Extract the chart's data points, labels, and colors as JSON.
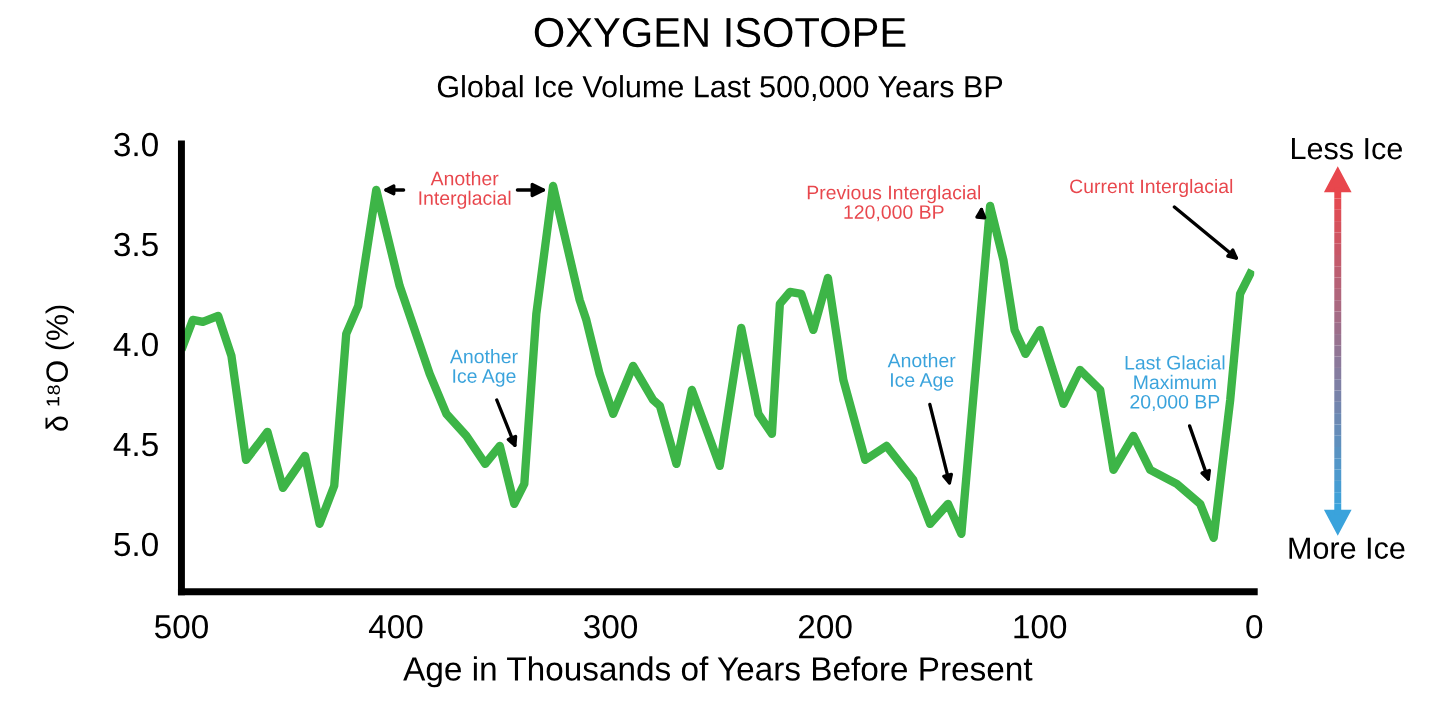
{
  "chart_data": {
    "type": "line",
    "title": "OXYGEN ISOTOPE",
    "subtitle": "Global Ice Volume Last 500,000 Years BP",
    "xlabel": "Age in Thousands of Years Before Present",
    "ylabel": "δ ¹⁸O (%)",
    "xlim": [
      500,
      0
    ],
    "xticks": [
      500,
      400,
      300,
      200,
      100,
      0
    ],
    "ylim": [
      5.24,
      3.0
    ],
    "yticks": [
      {
        "value": 3,
        "label": "3.0"
      },
      3.5,
      {
        "value": 4,
        "label": "4.0"
      },
      4.5,
      {
        "value": 5,
        "label": "5.0"
      }
    ],
    "grid": false,
    "legend": false,
    "line_style": "solid",
    "series": [
      {
        "color": "#3db547",
        "x": [
          499.3,
          494.7,
          490,
          482.9,
          476.7,
          469.9,
          459.9,
          452.7,
          442.4,
          435.6,
          428.8,
          423.2,
          417.6,
          409.2,
          398.3,
          384.3,
          376.5,
          367.2,
          358.4,
          351.6,
          344.9,
          340.2,
          334.6,
          326.8,
          314.4,
          311.3,
          305.1,
          298.8,
          289.5,
          280.2,
          277,
          269.3,
          262.1,
          249.1,
          239.1,
          231.1,
          224.8,
          221.1,
          216.4,
          211.1,
          205.5,
          198.7,
          191.5,
          181.3,
          171.4,
          158.9,
          151.1,
          142.7,
          136.5,
          123.1,
          116.9,
          111.7,
          106.6,
          99.8,
          88.9,
          81.2,
          71.8,
          65.6,
          56.3,
          48.5,
          36.1,
          25.2,
          18.9,
          11.2,
          6.6,
          1.9
        ],
        "values": [
          4.01,
          3.88,
          3.89,
          3.86,
          4.06,
          4.58,
          4.44,
          4.72,
          4.56,
          4.9,
          4.71,
          3.95,
          3.81,
          3.23,
          3.71,
          4.15,
          4.35,
          4.46,
          4.6,
          4.51,
          4.8,
          4.7,
          3.85,
          3.21,
          3.78,
          3.88,
          4.15,
          4.35,
          4.11,
          4.28,
          4.31,
          4.6,
          4.23,
          4.61,
          3.92,
          4.35,
          4.45,
          3.8,
          3.74,
          3.75,
          3.93,
          3.67,
          4.18,
          4.58,
          4.51,
          4.68,
          4.9,
          4.8,
          4.95,
          3.31,
          3.58,
          3.93,
          4.05,
          3.93,
          4.3,
          4.13,
          4.23,
          4.63,
          4.46,
          4.63,
          4.7,
          4.8,
          4.97,
          4.28,
          3.75,
          3.65
        ]
      }
    ],
    "annotations": [
      {
        "text": "Another\nInterglacial",
        "x": 409,
        "y": 3.23
      },
      {
        "text": "Another\nIce Age",
        "x": 343,
        "y": 4.55
      },
      {
        "text": "Previous Interglacial\n120,000 BP",
        "x": 127,
        "y": 3.31
      },
      {
        "text": "Another\nIce Age",
        "x": 141,
        "y": 4.74
      },
      {
        "text": "Last Glacial\nMaximum\n20,000 BP",
        "x": 20,
        "y": 4.72
      },
      {
        "text": "Current Interglacial",
        "x": 5,
        "y": 3.6
      },
      "Less Ice",
      "More Ice"
    ]
  }
}
